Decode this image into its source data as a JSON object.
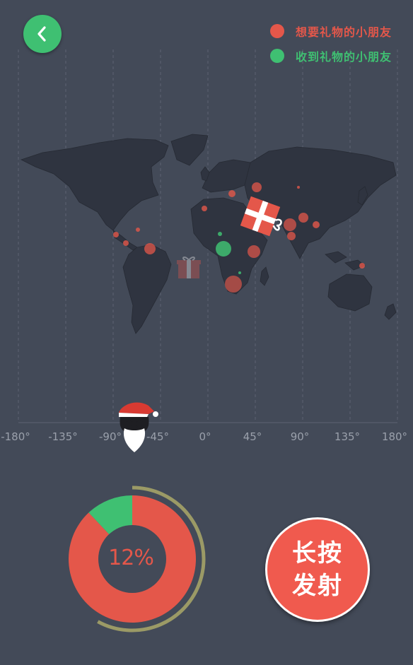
{
  "legend": {
    "want_label": "想要礼物的小朋友",
    "got_label": "收到礼物的小朋友",
    "want_color": "#e4574a",
    "got_color": "#3fc072"
  },
  "map": {
    "x_ticks": [
      "-180°",
      "-135°",
      "-90°",
      "-45°",
      "0°",
      "45°",
      "90°",
      "135°",
      "180°"
    ]
  },
  "progress": {
    "percent_label": "12%",
    "received_fraction": 0.12,
    "ring_fraction": 0.58,
    "ring_color": "#9b9a66"
  },
  "fire_button": {
    "line1": "长按",
    "line2": "发射"
  },
  "icons": {
    "back": "chevron-left-icon",
    "santa": "santa-icon",
    "gift": "gift-icon"
  }
}
